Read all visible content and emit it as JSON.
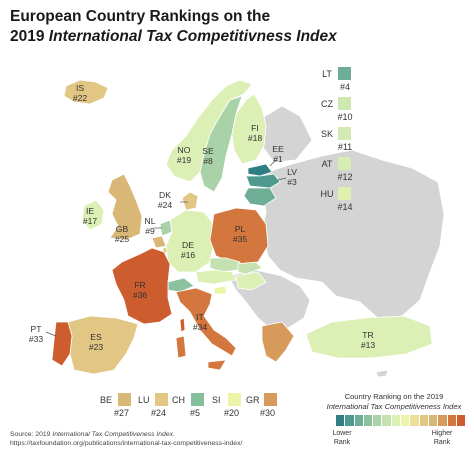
{
  "title": {
    "line1": "European Country Rankings on the",
    "line2_prefix": "2019 ",
    "line2_italic": "International Tax Competitivness Index"
  },
  "map_labels": {
    "IS": {
      "code": "IS",
      "rank": "#22"
    },
    "NO": {
      "code": "NO",
      "rank": "#19"
    },
    "SE": {
      "code": "SE",
      "rank": "#8"
    },
    "FI": {
      "code": "FI",
      "rank": "#18"
    },
    "EE": {
      "code": "EE",
      "rank": "#1"
    },
    "LV": {
      "code": "LV",
      "rank": "#3"
    },
    "DK": {
      "code": "DK",
      "rank": "#24"
    },
    "IE": {
      "code": "IE",
      "rank": "#17"
    },
    "GB": {
      "code": "GB",
      "rank": "#25"
    },
    "NL": {
      "code": "NL",
      "rank": "#9"
    },
    "DE": {
      "code": "DE",
      "rank": "#16"
    },
    "PL": {
      "code": "PL",
      "rank": "#35"
    },
    "FR": {
      "code": "FR",
      "rank": "#36"
    },
    "IT": {
      "code": "IT",
      "rank": "#34"
    },
    "ES": {
      "code": "ES",
      "rank": "#23"
    },
    "PT": {
      "code": "PT",
      "rank": "#33"
    },
    "TR": {
      "code": "TR",
      "rank": "#13"
    }
  },
  "side_legend": [
    {
      "code": "LT",
      "rank": "#4",
      "color": "#6fae96"
    },
    {
      "code": "CZ",
      "rank": "#10",
      "color": "#cde8b0"
    },
    {
      "code": "SK",
      "rank": "#11",
      "color": "#d3ebb3"
    },
    {
      "code": "AT",
      "rank": "#12",
      "color": "#d7edb3"
    },
    {
      "code": "HU",
      "rank": "#14",
      "color": "#dff0b1"
    }
  ],
  "bottom_legend": [
    {
      "code": "BE",
      "rank": "#27",
      "color": "#d9b877"
    },
    {
      "code": "LU",
      "rank": "#24",
      "color": "#e2c784"
    },
    {
      "code": "CH",
      "rank": "#5",
      "color": "#86bf9c"
    },
    {
      "code": "SI",
      "rank": "#20",
      "color": "#eef3aa"
    },
    {
      "code": "GR",
      "rank": "#30",
      "color": "#d79a5a"
    }
  ],
  "legend": {
    "title_line1": "Country Ranking on the 2019",
    "title_line2": "International Tax Competitiveness Index",
    "low_label": "Lower\nRank",
    "high_label": "Higher\nRank",
    "low_line1": "Lower",
    "low_line2": "Rank",
    "high_line1": "Higher",
    "high_line2": "Rank",
    "scale_colors": [
      "#2f7f82",
      "#4e9a8e",
      "#6fae96",
      "#8cc09f",
      "#a9d2a9",
      "#c5e1b0",
      "#dcefb4",
      "#eef3aa",
      "#ecdf98",
      "#e2c784",
      "#d9b877",
      "#d79a5a",
      "#d3773e",
      "#cd5d2e"
    ]
  },
  "source": {
    "prefix": "Source: 2019 ",
    "italic": "International Tax Competitiveness Index",
    "suffix": ".",
    "url": "https://taxfoundation.org/publications/international-tax-competitiveness-index/"
  },
  "colors": {
    "no_data": "#d4d4d4",
    "border": "#ffffff"
  }
}
